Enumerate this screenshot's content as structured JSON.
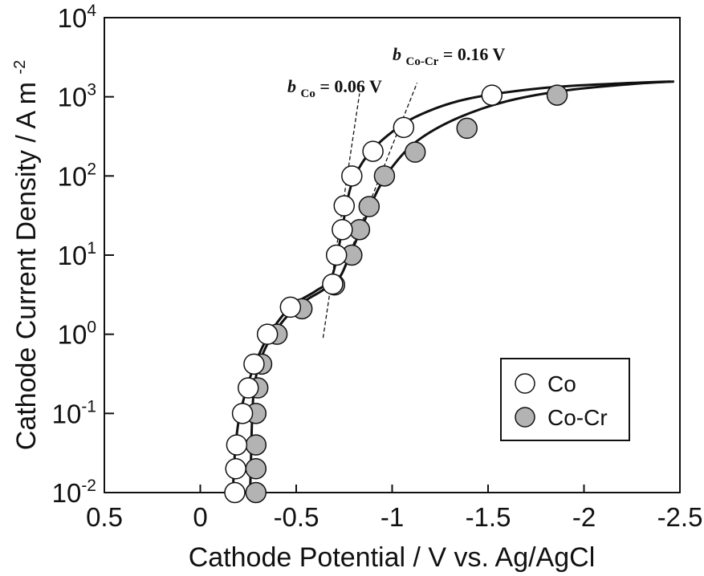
{
  "chart_data": {
    "type": "scatter",
    "title": "",
    "xlabel": "Cathode Potential / V vs. Ag/AgCl",
    "ylabel": "Cathode Current Density / A m",
    "ylabel_exponent": "-2",
    "xlim": [
      0.5,
      -2.5
    ],
    "ylim": [
      0.01,
      10000
    ],
    "yscale": "log",
    "x_ticks": [
      0.5,
      0,
      -0.5,
      -1,
      -1.5,
      -2,
      -2.5
    ],
    "x_tick_labels": [
      "0.5",
      "0",
      "-0.5",
      "-1",
      "-1.5",
      "-2",
      "-2.5"
    ],
    "y_ticks": [
      0.01,
      0.1,
      1,
      10,
      100,
      1000,
      10000
    ],
    "y_tick_labels": [
      {
        "base": "10",
        "exp": "-2"
      },
      {
        "base": "10",
        "exp": "-1"
      },
      {
        "base": "10",
        "exp": "0"
      },
      {
        "base": "10",
        "exp": "1"
      },
      {
        "base": "10",
        "exp": "2"
      },
      {
        "base": "10",
        "exp": "3"
      },
      {
        "base": "10",
        "exp": "4"
      }
    ],
    "grid": false,
    "legend_position": "bottom-right",
    "series": [
      {
        "name": "Co",
        "marker_fill": "#ffffff",
        "points": [
          {
            "x": -0.18,
            "y": 0.01
          },
          {
            "x": -0.185,
            "y": 0.02
          },
          {
            "x": -0.19,
            "y": 0.04
          },
          {
            "x": -0.22,
            "y": 0.1
          },
          {
            "x": -0.25,
            "y": 0.21
          },
          {
            "x": -0.28,
            "y": 0.42
          },
          {
            "x": -0.35,
            "y": 1.0
          },
          {
            "x": -0.47,
            "y": 2.2
          },
          {
            "x": -0.69,
            "y": 4.3
          },
          {
            "x": -0.71,
            "y": 10
          },
          {
            "x": -0.74,
            "y": 21
          },
          {
            "x": -0.75,
            "y": 42
          },
          {
            "x": -0.79,
            "y": 100
          },
          {
            "x": -0.9,
            "y": 205
          },
          {
            "x": -1.06,
            "y": 410
          },
          {
            "x": -1.52,
            "y": 1050
          }
        ],
        "fit_curve": [
          {
            "x": -0.17,
            "y": 0.01
          },
          {
            "x": -0.18,
            "y": 0.03
          },
          {
            "x": -0.2,
            "y": 0.08
          },
          {
            "x": -0.24,
            "y": 0.2
          },
          {
            "x": -0.29,
            "y": 0.45
          },
          {
            "x": -0.36,
            "y": 1.0
          },
          {
            "x": -0.47,
            "y": 2.2
          },
          {
            "x": -0.6,
            "y": 3.5
          },
          {
            "x": -0.68,
            "y": 5
          },
          {
            "x": -0.72,
            "y": 12
          },
          {
            "x": -0.75,
            "y": 30
          },
          {
            "x": -0.79,
            "y": 80
          },
          {
            "x": -0.87,
            "y": 180
          },
          {
            "x": -1.0,
            "y": 360
          },
          {
            "x": -1.15,
            "y": 600
          },
          {
            "x": -1.4,
            "y": 950
          },
          {
            "x": -1.8,
            "y": 1300
          },
          {
            "x": -2.2,
            "y": 1480
          },
          {
            "x": -2.45,
            "y": 1560
          }
        ]
      },
      {
        "name": "Co-Cr",
        "marker_fill": "#b3b3b3",
        "points": [
          {
            "x": -0.29,
            "y": 0.01
          },
          {
            "x": -0.29,
            "y": 0.02
          },
          {
            "x": -0.29,
            "y": 0.04
          },
          {
            "x": -0.29,
            "y": 0.1
          },
          {
            "x": -0.3,
            "y": 0.21
          },
          {
            "x": -0.32,
            "y": 0.42
          },
          {
            "x": -0.4,
            "y": 1.0
          },
          {
            "x": -0.53,
            "y": 2.1
          },
          {
            "x": -0.7,
            "y": 4.2
          },
          {
            "x": -0.79,
            "y": 10
          },
          {
            "x": -0.83,
            "y": 21
          },
          {
            "x": -0.88,
            "y": 41
          },
          {
            "x": -0.96,
            "y": 100
          },
          {
            "x": -1.12,
            "y": 200
          },
          {
            "x": -1.39,
            "y": 400
          },
          {
            "x": -1.86,
            "y": 1050
          }
        ],
        "fit_curve": [
          {
            "x": -0.26,
            "y": 0.01
          },
          {
            "x": -0.265,
            "y": 0.03
          },
          {
            "x": -0.27,
            "y": 0.08
          },
          {
            "x": -0.28,
            "y": 0.2
          },
          {
            "x": -0.31,
            "y": 0.45
          },
          {
            "x": -0.38,
            "y": 1.0
          },
          {
            "x": -0.5,
            "y": 2.2
          },
          {
            "x": -0.63,
            "y": 3.5
          },
          {
            "x": -0.72,
            "y": 5
          },
          {
            "x": -0.78,
            "y": 10
          },
          {
            "x": -0.85,
            "y": 25
          },
          {
            "x": -0.93,
            "y": 70
          },
          {
            "x": -1.03,
            "y": 160
          },
          {
            "x": -1.15,
            "y": 300
          },
          {
            "x": -1.35,
            "y": 550
          },
          {
            "x": -1.6,
            "y": 880
          },
          {
            "x": -1.9,
            "y": 1200
          },
          {
            "x": -2.25,
            "y": 1450
          },
          {
            "x": -2.47,
            "y": 1560
          }
        ]
      }
    ],
    "tafel_lines": [
      {
        "name": "b_Co",
        "points": [
          {
            "x": -0.64,
            "y": 0.9
          },
          {
            "x": -0.83,
            "y": 1100
          }
        ]
      },
      {
        "name": "b_Co-Cr",
        "points": [
          {
            "x": -0.71,
            "y": 4
          },
          {
            "x": -1.13,
            "y": 1500
          }
        ]
      }
    ],
    "annotations": [
      {
        "id": "b_co",
        "symbol": "b",
        "subscript": "Co",
        "value": " = 0.06 V"
      },
      {
        "id": "b_cocr",
        "symbol": "b",
        "subscript": "Co-Cr",
        "value": " = 0.16 V"
      }
    ]
  }
}
